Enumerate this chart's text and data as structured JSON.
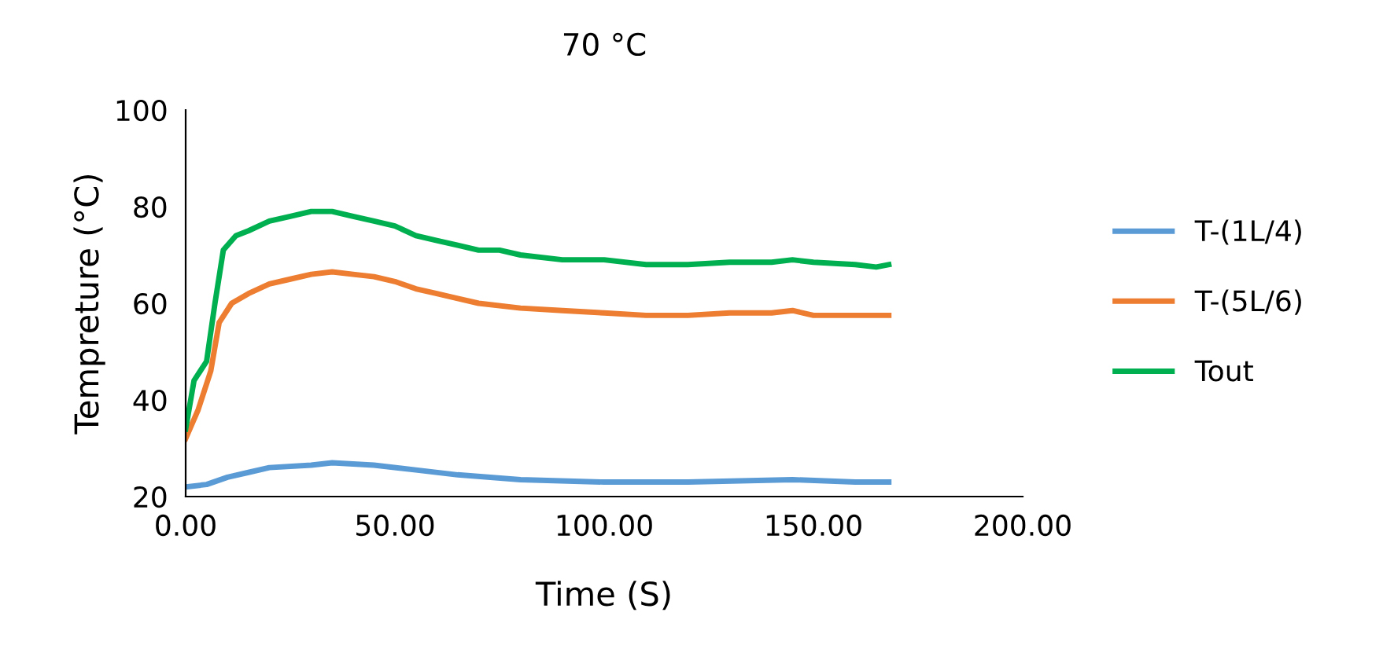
{
  "chart_data": {
    "type": "line",
    "title": "70 °C",
    "xlabel": "Time (S)",
    "ylabel": "Tempreture (°C)",
    "xlim": [
      0,
      200
    ],
    "xticks": [
      {
        "value": 0,
        "label": "0.00"
      },
      {
        "value": 50,
        "label": "50.00"
      },
      {
        "value": 100,
        "label": "100.00"
      },
      {
        "value": 150,
        "label": "150.00"
      },
      {
        "value": 200,
        "label": "200.00"
      }
    ],
    "ylim": [
      20,
      100
    ],
    "yticks": [
      20,
      40,
      60,
      80,
      100
    ],
    "grid": false,
    "legend": "right",
    "marker": "none",
    "line_style": "solid",
    "series": [
      {
        "name": "T-(1L/4)",
        "color": "#5b9bd5",
        "x": [
          0,
          5,
          10,
          15,
          20,
          30,
          35,
          45,
          55,
          65,
          80,
          100,
          120,
          145,
          160,
          168
        ],
        "values": [
          22,
          22.5,
          24,
          25,
          26,
          26.5,
          27,
          26.5,
          25.5,
          24.5,
          23.5,
          23,
          23,
          23.5,
          23,
          23
        ]
      },
      {
        "name": "T-(5L/6)",
        "color": "#ed7d31",
        "x": [
          0,
          3,
          6,
          8,
          11,
          15,
          20,
          25,
          30,
          35,
          40,
          45,
          50,
          55,
          60,
          65,
          70,
          80,
          90,
          100,
          110,
          120,
          130,
          140,
          145,
          150,
          160,
          168
        ],
        "values": [
          32,
          38,
          46,
          56,
          60,
          62,
          64,
          65,
          66,
          66.5,
          66,
          65.5,
          64.5,
          63,
          62,
          61,
          60,
          59,
          58.5,
          58,
          57.5,
          57.5,
          58,
          58,
          58.5,
          57.5,
          57.5,
          57.5
        ]
      },
      {
        "name": "Tout",
        "color": "#00b050",
        "x": [
          0,
          2,
          5,
          7,
          9,
          12,
          15,
          20,
          25,
          30,
          35,
          40,
          45,
          50,
          55,
          60,
          65,
          70,
          75,
          80,
          90,
          100,
          110,
          120,
          130,
          140,
          145,
          150,
          160,
          165,
          168
        ],
        "values": [
          34,
          44,
          48,
          60,
          71,
          74,
          75,
          77,
          78,
          79,
          79,
          78,
          77,
          76,
          74,
          73,
          72,
          71,
          71,
          70,
          69,
          69,
          68,
          68,
          68.5,
          68.5,
          69,
          68.5,
          68,
          67.5,
          68
        ]
      }
    ]
  }
}
